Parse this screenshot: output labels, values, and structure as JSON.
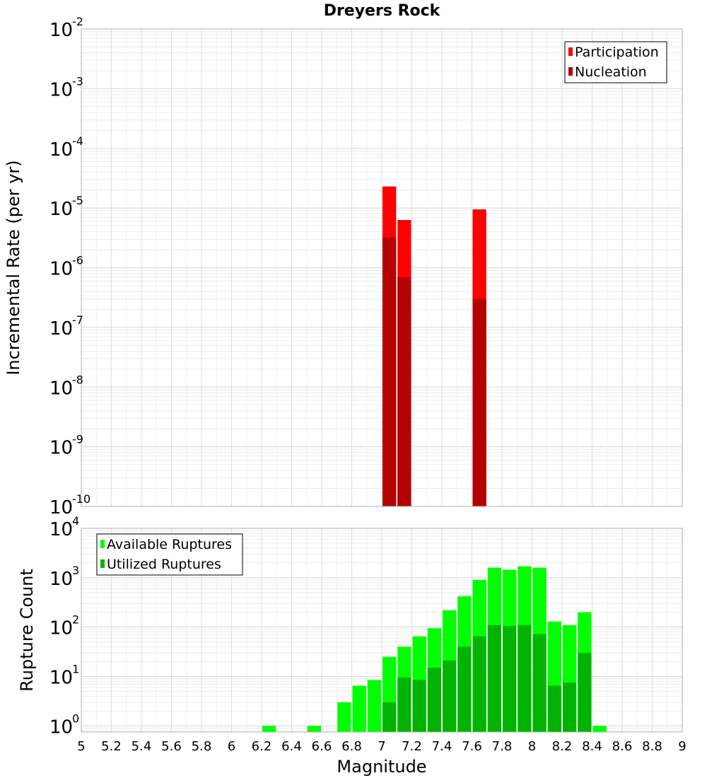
{
  "chart_data": [
    {
      "type": "bar",
      "title": "Dreyers Rock",
      "ylabel": "Incremental Rate (per yr)",
      "xlabel": "",
      "yscale": "log",
      "ylim": [
        1e-10,
        0.01
      ],
      "xlim": [
        5,
        9
      ],
      "grid": true,
      "legend_position": "top-right",
      "y_ticks": [
        {
          "base": "10",
          "exp": "-10",
          "value": 1e-10
        },
        {
          "base": "10",
          "exp": "-9",
          "value": 1e-09
        },
        {
          "base": "10",
          "exp": "-8",
          "value": 1e-08
        },
        {
          "base": "10",
          "exp": "-7",
          "value": 1e-07
        },
        {
          "base": "10",
          "exp": "-6",
          "value": 1e-06
        },
        {
          "base": "10",
          "exp": "-5",
          "value": 1e-05
        },
        {
          "base": "10",
          "exp": "-4",
          "value": 0.0001
        },
        {
          "base": "10",
          "exp": "-3",
          "value": 0.001
        },
        {
          "base": "10",
          "exp": "-2",
          "value": 0.01
        }
      ],
      "series": [
        {
          "name": "Participation",
          "color": "#ff0000",
          "x": [
            7.05,
            7.15,
            7.65
          ],
          "values": [
            2.3e-05,
            6.3e-06,
            9.5e-06
          ]
        },
        {
          "name": "Nucleation",
          "color": "#b30000",
          "x": [
            7.05,
            7.15,
            7.65
          ],
          "values": [
            3.2e-06,
            7e-07,
            3e-07
          ]
        }
      ]
    },
    {
      "type": "bar",
      "title": "",
      "ylabel": "Rupture Count",
      "xlabel": "Magnitude",
      "yscale": "log",
      "ylim": [
        0.75,
        10000
      ],
      "xlim": [
        5,
        9
      ],
      "grid": true,
      "legend_position": "top-left",
      "x_ticks": [
        "5",
        "5.2",
        "5.4",
        "5.6",
        "5.8",
        "6",
        "6.2",
        "6.4",
        "6.6",
        "6.8",
        "7",
        "7.2",
        "7.4",
        "7.6",
        "7.8",
        "8",
        "8.2",
        "8.4",
        "8.6",
        "8.8",
        "9"
      ],
      "y_ticks": [
        {
          "base": "10",
          "exp": "0",
          "value": 1
        },
        {
          "base": "10",
          "exp": "1",
          "value": 10
        },
        {
          "base": "10",
          "exp": "2",
          "value": 100
        },
        {
          "base": "10",
          "exp": "3",
          "value": 1000
        },
        {
          "base": "10",
          "exp": "4",
          "value": 10000
        }
      ],
      "series": [
        {
          "name": "Available Ruptures",
          "color": "#00ff00",
          "x": [
            6.25,
            6.55,
            6.75,
            6.85,
            6.95,
            7.05,
            7.15,
            7.25,
            7.35,
            7.45,
            7.55,
            7.65,
            7.75,
            7.85,
            7.95,
            8.05,
            8.15,
            8.25,
            8.35,
            8.45
          ],
          "values": [
            1,
            1,
            3,
            6.5,
            8.5,
            25,
            40,
            65,
            95,
            220,
            420,
            900,
            1600,
            1450,
            1700,
            1600,
            130,
            110,
            200,
            1
          ]
        },
        {
          "name": "Utilized Ruptures",
          "color": "#00b300",
          "x": [
            7.05,
            7.15,
            7.25,
            7.35,
            7.45,
            7.55,
            7.65,
            7.75,
            7.85,
            7.95,
            8.05,
            8.15,
            8.25,
            8.35
          ],
          "values": [
            3,
            9.5,
            8.5,
            15,
            21,
            40,
            65,
            110,
            105,
            110,
            72,
            6.5,
            7.5,
            30
          ]
        }
      ]
    }
  ]
}
